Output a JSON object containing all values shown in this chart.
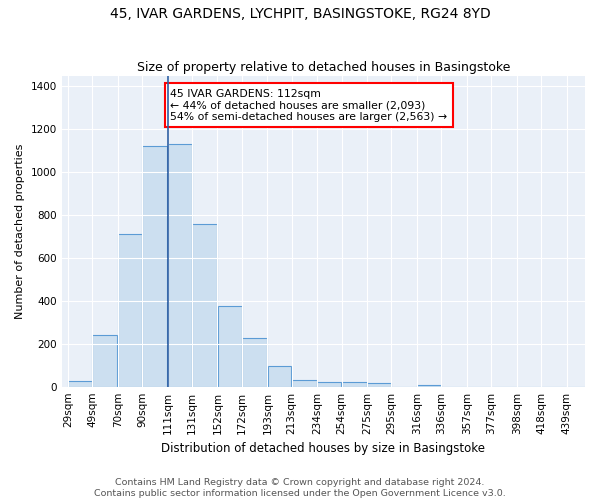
{
  "title": "45, IVAR GARDENS, LYCHPIT, BASINGSTOKE, RG24 8YD",
  "subtitle": "Size of property relative to detached houses in Basingstoke",
  "xlabel": "Distribution of detached houses by size in Basingstoke",
  "ylabel": "Number of detached properties",
  "footer_line1": "Contains HM Land Registry data © Crown copyright and database right 2024.",
  "footer_line2": "Contains public sector information licensed under the Open Government Licence v3.0.",
  "annotation_line1": "45 IVAR GARDENS: 112sqm",
  "annotation_line2": "← 44% of detached houses are smaller (2,093)",
  "annotation_line3": "54% of semi-detached houses are larger (2,563) →",
  "bar_edges": [
    29,
    49,
    70,
    90,
    111,
    131,
    152,
    172,
    193,
    213,
    234,
    254,
    275,
    295,
    316,
    336,
    357,
    377,
    398,
    418,
    439
  ],
  "bar_heights": [
    25,
    240,
    710,
    1120,
    1130,
    760,
    375,
    225,
    95,
    30,
    20,
    20,
    15,
    0,
    10,
    0,
    0,
    0,
    0,
    0,
    0
  ],
  "bar_color": "#ccdff0",
  "bar_edge_color": "#5b9bd5",
  "bar_linewidth": 0.8,
  "property_line_x": 111,
  "property_line_color": "#2e5fa3",
  "background_color": "#eaf0f8",
  "grid_color": "#ffffff",
  "ylim": [
    0,
    1450
  ],
  "yticks": [
    0,
    200,
    400,
    600,
    800,
    1000,
    1200,
    1400
  ],
  "title_fontsize": 10,
  "subtitle_fontsize": 9,
  "xlabel_fontsize": 8.5,
  "ylabel_fontsize": 8,
  "tick_fontsize": 7.5,
  "annotation_fontsize": 7.8,
  "footer_fontsize": 6.8
}
